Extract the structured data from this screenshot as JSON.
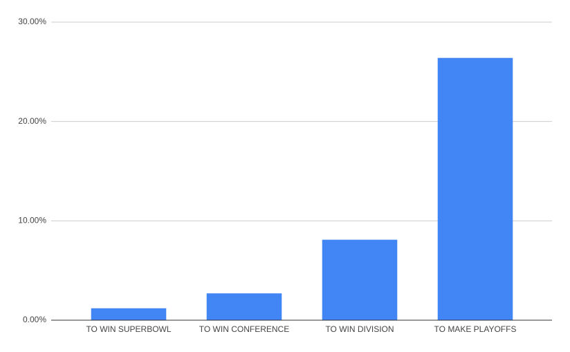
{
  "chart_data": {
    "type": "bar",
    "categories": [
      "TO WIN SUPERBOWL",
      "TO WIN CONFERENCE",
      "TO WIN DIVISION",
      "TO MAKE PLAYOFFS"
    ],
    "values": [
      1.2,
      2.7,
      8.1,
      26.4
    ],
    "color": "#4285f4",
    "ylim": [
      0,
      30
    ],
    "yticks": [
      {
        "value": 0,
        "label": "0.00%"
      },
      {
        "value": 10,
        "label": "10.00%"
      },
      {
        "value": 20,
        "label": "20.00%"
      },
      {
        "value": 30,
        "label": "30.00%"
      }
    ],
    "grid": true
  }
}
